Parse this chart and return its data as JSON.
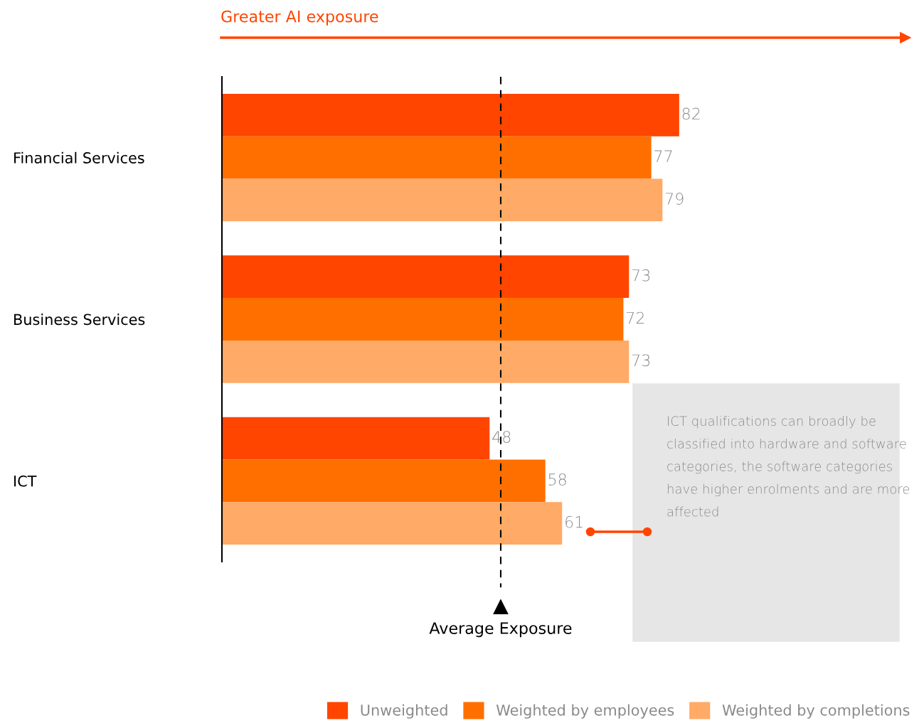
{
  "chart_data": {
    "type": "bar",
    "orientation": "horizontal",
    "categories": [
      "Financial Services",
      "Business Services",
      "ICT"
    ],
    "series": [
      {
        "name": "Unweighted",
        "color": "#ff4500",
        "values": [
          82,
          73,
          48
        ]
      },
      {
        "name": "Weighted by employees",
        "color": "#ff6f00",
        "values": [
          77,
          72,
          58
        ]
      },
      {
        "name": "Weighted by completions",
        "color": "#ffaa66",
        "values": [
          79,
          73,
          61
        ]
      }
    ],
    "data_labels": true,
    "tick_labels": "y",
    "ref_lines": [
      {
        "axis": "x",
        "value": 50,
        "label": "Average Exposure",
        "line_style": "dashed",
        "color": "#000000"
      }
    ],
    "annotations": [
      "Greater AI exposure",
      "ICT qualifications can broadly be classified into hardware and software categories, the software categories have higher enrolments and are more affected"
    ],
    "legend": "bottom right"
  }
}
